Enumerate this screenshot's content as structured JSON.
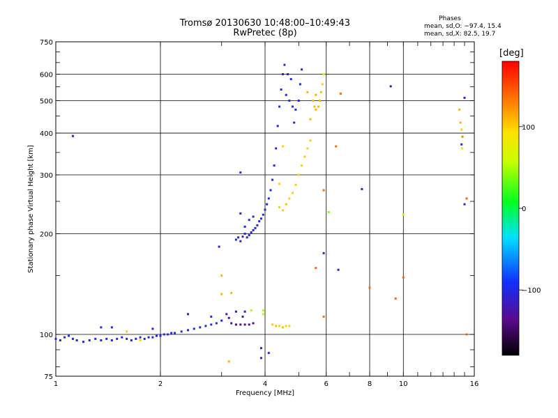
{
  "header": {
    "title_line1": "Tromsø 20130630 10:48:00–10:49:43",
    "title_line2": "RwPretec (8p)"
  },
  "phases_box": {
    "title": "Phases",
    "o_line": "mean, sd,O: −97.4, 15.4",
    "x_line": "mean, sd,X:  82.5, 19.7"
  },
  "colorbar": {
    "unit": "[deg]",
    "ticks": [
      {
        "value": 100,
        "label": "100"
      },
      {
        "value": 0,
        "label": "0"
      },
      {
        "value": -100,
        "label": "−100"
      }
    ],
    "range": [
      -180,
      180
    ]
  },
  "chart_data": {
    "type": "scatter",
    "title": "Tromsø 20130630 10:48:00–10:49:43",
    "subtitle": "RwPretec (8p)",
    "xlabel": "Frequency [MHz]",
    "ylabel": "Stationary phase Virtual Height [km]",
    "x_scale": "log",
    "y_scale": "log",
    "xlim": [
      1,
      16
    ],
    "ylim": [
      75,
      750
    ],
    "x_ticks": [
      {
        "value": 1,
        "label": "1"
      },
      {
        "value": 2,
        "label": "2"
      },
      {
        "value": 4,
        "label": "4"
      },
      {
        "value": 6,
        "label": "6"
      },
      {
        "value": 8,
        "label": "8"
      },
      {
        "value": 10,
        "label": "10"
      },
      {
        "value": 16,
        "label": "16"
      }
    ],
    "y_ticks": [
      {
        "value": 75,
        "label": "75"
      },
      {
        "value": 100,
        "label": "100"
      },
      {
        "value": 200,
        "label": "200"
      },
      {
        "value": 300,
        "label": "300"
      },
      {
        "value": 400,
        "label": "400"
      },
      {
        "value": 500,
        "label": "500"
      },
      {
        "value": 600,
        "label": "600"
      },
      {
        "value": 750,
        "label": "750"
      }
    ],
    "grid_x": [
      1,
      2,
      4,
      6,
      8,
      10
    ],
    "grid_y": [
      100,
      200,
      300,
      400,
      500,
      600
    ],
    "grid": true,
    "points": [
      {
        "x": 1.0,
        "y": 97,
        "phase": -105
      },
      {
        "x": 1.03,
        "y": 96,
        "phase": -100
      },
      {
        "x": 1.06,
        "y": 98,
        "phase": -100
      },
      {
        "x": 1.09,
        "y": 99,
        "phase": -95
      },
      {
        "x": 1.12,
        "y": 97,
        "phase": -100
      },
      {
        "x": 1.15,
        "y": 96,
        "phase": -105
      },
      {
        "x": 1.2,
        "y": 95,
        "phase": -100
      },
      {
        "x": 1.25,
        "y": 96,
        "phase": -100
      },
      {
        "x": 1.3,
        "y": 97,
        "phase": -95
      },
      {
        "x": 1.35,
        "y": 96,
        "phase": -100
      },
      {
        "x": 1.4,
        "y": 97,
        "phase": -100
      },
      {
        "x": 1.45,
        "y": 96,
        "phase": -105
      },
      {
        "x": 1.5,
        "y": 97,
        "phase": -100
      },
      {
        "x": 1.55,
        "y": 98,
        "phase": -100
      },
      {
        "x": 1.6,
        "y": 97,
        "phase": -95
      },
      {
        "x": 1.65,
        "y": 96,
        "phase": -100
      },
      {
        "x": 1.7,
        "y": 97,
        "phase": -100
      },
      {
        "x": 1.75,
        "y": 98,
        "phase": -100
      },
      {
        "x": 1.8,
        "y": 97,
        "phase": -105
      },
      {
        "x": 1.85,
        "y": 98,
        "phase": -100
      },
      {
        "x": 1.9,
        "y": 98,
        "phase": -100
      },
      {
        "x": 1.95,
        "y": 99,
        "phase": -100
      },
      {
        "x": 2.0,
        "y": 99,
        "phase": -100
      },
      {
        "x": 2.05,
        "y": 100,
        "phase": -100
      },
      {
        "x": 2.1,
        "y": 100,
        "phase": -95
      },
      {
        "x": 2.15,
        "y": 101,
        "phase": -100
      },
      {
        "x": 2.2,
        "y": 101,
        "phase": -100
      },
      {
        "x": 2.3,
        "y": 102,
        "phase": -100
      },
      {
        "x": 2.4,
        "y": 103,
        "phase": -100
      },
      {
        "x": 2.5,
        "y": 104,
        "phase": -95
      },
      {
        "x": 2.6,
        "y": 105,
        "phase": -100
      },
      {
        "x": 2.7,
        "y": 106,
        "phase": -100
      },
      {
        "x": 2.8,
        "y": 107,
        "phase": -100
      },
      {
        "x": 2.9,
        "y": 108,
        "phase": -95
      },
      {
        "x": 3.0,
        "y": 110,
        "phase": -100
      },
      {
        "x": 1.12,
        "y": 392,
        "phase": -100
      },
      {
        "x": 1.35,
        "y": 105,
        "phase": -100
      },
      {
        "x": 1.45,
        "y": 105,
        "phase": -95
      },
      {
        "x": 1.9,
        "y": 104,
        "phase": -100
      },
      {
        "x": 2.4,
        "y": 115,
        "phase": -100
      },
      {
        "x": 2.8,
        "y": 113,
        "phase": -100
      },
      {
        "x": 1.75,
        "y": 96,
        "phase": 100
      },
      {
        "x": 1.6,
        "y": 102,
        "phase": 100
      },
      {
        "x": 3.1,
        "y": 115,
        "phase": -120
      },
      {
        "x": 3.15,
        "y": 112,
        "phase": -120
      },
      {
        "x": 3.2,
        "y": 108,
        "phase": -130
      },
      {
        "x": 3.3,
        "y": 107,
        "phase": -140
      },
      {
        "x": 3.4,
        "y": 107,
        "phase": -130
      },
      {
        "x": 3.5,
        "y": 107,
        "phase": -130
      },
      {
        "x": 3.6,
        "y": 107,
        "phase": -130
      },
      {
        "x": 3.7,
        "y": 108,
        "phase": -130
      },
      {
        "x": 3.3,
        "y": 117,
        "phase": -120
      },
      {
        "x": 3.5,
        "y": 117,
        "phase": -110
      },
      {
        "x": 3.45,
        "y": 113,
        "phase": -120
      },
      {
        "x": 3.65,
        "y": 118,
        "phase": 50
      },
      {
        "x": 3.0,
        "y": 132,
        "phase": 110
      },
      {
        "x": 3.2,
        "y": 133,
        "phase": 110
      },
      {
        "x": 3.0,
        "y": 150,
        "phase": 110
      },
      {
        "x": 2.95,
        "y": 183,
        "phase": -100
      },
      {
        "x": 3.15,
        "y": 83,
        "phase": 110
      },
      {
        "x": 3.9,
        "y": 85,
        "phase": -100
      },
      {
        "x": 3.9,
        "y": 91,
        "phase": -100
      },
      {
        "x": 4.1,
        "y": 88,
        "phase": -100
      },
      {
        "x": 3.95,
        "y": 115,
        "phase": 50
      },
      {
        "x": 3.95,
        "y": 118,
        "phase": 50
      },
      {
        "x": 4.2,
        "y": 107,
        "phase": 100
      },
      {
        "x": 4.3,
        "y": 106,
        "phase": 105
      },
      {
        "x": 4.4,
        "y": 106,
        "phase": 100
      },
      {
        "x": 4.5,
        "y": 105,
        "phase": 105
      },
      {
        "x": 4.6,
        "y": 106,
        "phase": 100
      },
      {
        "x": 4.7,
        "y": 106,
        "phase": 100
      },
      {
        "x": 3.3,
        "y": 192,
        "phase": -100
      },
      {
        "x": 3.35,
        "y": 195,
        "phase": -110
      },
      {
        "x": 3.4,
        "y": 190,
        "phase": -100
      },
      {
        "x": 3.45,
        "y": 196,
        "phase": -120
      },
      {
        "x": 3.5,
        "y": 200,
        "phase": -100
      },
      {
        "x": 3.55,
        "y": 195,
        "phase": -110
      },
      {
        "x": 3.6,
        "y": 198,
        "phase": -100
      },
      {
        "x": 3.65,
        "y": 202,
        "phase": -105
      },
      {
        "x": 3.7,
        "y": 205,
        "phase": -100
      },
      {
        "x": 3.75,
        "y": 208,
        "phase": -100
      },
      {
        "x": 3.8,
        "y": 212,
        "phase": -100
      },
      {
        "x": 3.85,
        "y": 218,
        "phase": -100
      },
      {
        "x": 3.9,
        "y": 222,
        "phase": -100
      },
      {
        "x": 3.95,
        "y": 228,
        "phase": -100
      },
      {
        "x": 4.0,
        "y": 236,
        "phase": -100
      },
      {
        "x": 4.05,
        "y": 245,
        "phase": -100
      },
      {
        "x": 4.1,
        "y": 255,
        "phase": -100
      },
      {
        "x": 4.15,
        "y": 270,
        "phase": -100
      },
      {
        "x": 4.2,
        "y": 290,
        "phase": -100
      },
      {
        "x": 4.25,
        "y": 320,
        "phase": -100
      },
      {
        "x": 4.3,
        "y": 360,
        "phase": -100
      },
      {
        "x": 4.35,
        "y": 420,
        "phase": -100
      },
      {
        "x": 4.4,
        "y": 480,
        "phase": -100
      },
      {
        "x": 4.45,
        "y": 540,
        "phase": -100
      },
      {
        "x": 4.5,
        "y": 600,
        "phase": -100
      },
      {
        "x": 4.55,
        "y": 640,
        "phase": -100
      },
      {
        "x": 3.4,
        "y": 230,
        "phase": -110
      },
      {
        "x": 3.6,
        "y": 220,
        "phase": -100
      },
      {
        "x": 3.5,
        "y": 210,
        "phase": -100
      },
      {
        "x": 3.7,
        "y": 225,
        "phase": -100
      },
      {
        "x": 3.4,
        "y": 305,
        "phase": -100
      },
      {
        "x": 4.6,
        "y": 520,
        "phase": -100
      },
      {
        "x": 4.7,
        "y": 500,
        "phase": -100
      },
      {
        "x": 4.8,
        "y": 480,
        "phase": -100
      },
      {
        "x": 4.9,
        "y": 470,
        "phase": -100
      },
      {
        "x": 5.0,
        "y": 500,
        "phase": -100
      },
      {
        "x": 5.05,
        "y": 560,
        "phase": -100
      },
      {
        "x": 5.1,
        "y": 620,
        "phase": -100
      },
      {
        "x": 4.75,
        "y": 580,
        "phase": -100
      },
      {
        "x": 4.65,
        "y": 600,
        "phase": -100
      },
      {
        "x": 4.85,
        "y": 430,
        "phase": -100
      },
      {
        "x": 4.4,
        "y": 240,
        "phase": 100
      },
      {
        "x": 4.5,
        "y": 235,
        "phase": 100
      },
      {
        "x": 4.6,
        "y": 245,
        "phase": 105
      },
      {
        "x": 4.7,
        "y": 255,
        "phase": 100
      },
      {
        "x": 4.8,
        "y": 265,
        "phase": 100
      },
      {
        "x": 4.9,
        "y": 280,
        "phase": 100
      },
      {
        "x": 5.0,
        "y": 300,
        "phase": 100
      },
      {
        "x": 5.1,
        "y": 320,
        "phase": 100
      },
      {
        "x": 5.2,
        "y": 340,
        "phase": 100
      },
      {
        "x": 5.3,
        "y": 360,
        "phase": 100
      },
      {
        "x": 5.4,
        "y": 380,
        "phase": 100
      },
      {
        "x": 5.5,
        "y": 500,
        "phase": 110
      },
      {
        "x": 5.55,
        "y": 480,
        "phase": 110
      },
      {
        "x": 5.6,
        "y": 470,
        "phase": 110
      },
      {
        "x": 5.7,
        "y": 480,
        "phase": 110
      },
      {
        "x": 5.75,
        "y": 500,
        "phase": 110
      },
      {
        "x": 5.8,
        "y": 530,
        "phase": 105
      },
      {
        "x": 5.85,
        "y": 560,
        "phase": 100
      },
      {
        "x": 5.9,
        "y": 600,
        "phase": 80
      },
      {
        "x": 5.6,
        "y": 520,
        "phase": 110
      },
      {
        "x": 5.3,
        "y": 530,
        "phase": 110
      },
      {
        "x": 5.4,
        "y": 440,
        "phase": 110
      },
      {
        "x": 4.4,
        "y": 282,
        "phase": 100
      },
      {
        "x": 4.5,
        "y": 365,
        "phase": 100
      },
      {
        "x": 5.9,
        "y": 270,
        "phase": 140
      },
      {
        "x": 6.1,
        "y": 232,
        "phase": 40
      },
      {
        "x": 5.9,
        "y": 175,
        "phase": -100
      },
      {
        "x": 6.5,
        "y": 156,
        "phase": -100
      },
      {
        "x": 5.6,
        "y": 158,
        "phase": 140
      },
      {
        "x": 5.9,
        "y": 113,
        "phase": 140
      },
      {
        "x": 6.4,
        "y": 365,
        "phase": 140
      },
      {
        "x": 6.6,
        "y": 525,
        "phase": 140
      },
      {
        "x": 7.6,
        "y": 272,
        "phase": -120
      },
      {
        "x": 8.0,
        "y": 138,
        "phase": 140
      },
      {
        "x": 9.2,
        "y": 552,
        "phase": -120
      },
      {
        "x": 9.5,
        "y": 128,
        "phase": 140
      },
      {
        "x": 10.0,
        "y": 148,
        "phase": 140
      },
      {
        "x": 10.0,
        "y": 228,
        "phase": 60
      },
      {
        "x": 14.5,
        "y": 470,
        "phase": 110
      },
      {
        "x": 14.6,
        "y": 430,
        "phase": 110
      },
      {
        "x": 14.7,
        "y": 410,
        "phase": 100
      },
      {
        "x": 14.8,
        "y": 390,
        "phase": 130
      },
      {
        "x": 14.7,
        "y": 370,
        "phase": -100
      },
      {
        "x": 14.75,
        "y": 360,
        "phase": 60
      },
      {
        "x": 15.0,
        "y": 510,
        "phase": -100
      },
      {
        "x": 15.2,
        "y": 255,
        "phase": 140
      },
      {
        "x": 15.0,
        "y": 245,
        "phase": -100
      },
      {
        "x": 15.2,
        "y": 100,
        "phase": 140
      }
    ]
  }
}
